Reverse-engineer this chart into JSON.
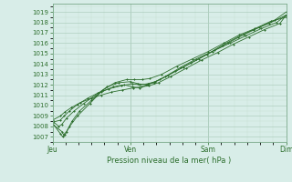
{
  "title": "",
  "xlabel": "Pression niveau de la mer( hPa )",
  "bg_color": "#d8ede8",
  "grid_color_major": "#b0cfc0",
  "grid_color_minor": "#c8e0d4",
  "line_color": "#2d6e2d",
  "ylim": [
    1006.5,
    1019.8
  ],
  "yticks": [
    1007,
    1008,
    1009,
    1010,
    1011,
    1012,
    1013,
    1014,
    1015,
    1016,
    1017,
    1018,
    1019
  ],
  "xtick_labels": [
    "Jeu",
    "Ven",
    "Sam",
    "Dim"
  ],
  "xtick_positions": [
    0,
    1,
    2,
    3
  ],
  "x_total": 3.0,
  "series": [
    {
      "x": [
        0.0,
        0.12,
        0.14,
        0.18,
        0.25,
        0.35,
        0.5,
        0.65,
        0.8,
        0.95,
        1.05,
        1.15,
        1.25,
        1.4,
        1.6,
        1.8,
        2.0,
        2.2,
        2.4,
        2.6,
        2.8,
        3.0
      ],
      "y": [
        1008.2,
        1007.5,
        1007.2,
        1007.5,
        1008.5,
        1009.5,
        1010.5,
        1011.5,
        1012.2,
        1012.5,
        1012.5,
        1012.5,
        1012.6,
        1013.0,
        1013.8,
        1014.5,
        1015.2,
        1016.0,
        1016.8,
        1017.4,
        1018.1,
        1018.5
      ]
    },
    {
      "x": [
        0.0,
        0.1,
        0.13,
        0.16,
        0.22,
        0.32,
        0.48,
        0.62,
        0.78,
        0.92,
        1.02,
        1.12,
        1.22,
        1.38,
        1.58,
        1.78,
        1.98,
        2.18,
        2.38,
        2.58,
        2.78,
        3.0
      ],
      "y": [
        1008.3,
        1007.3,
        1007.0,
        1007.2,
        1008.0,
        1009.0,
        1010.2,
        1011.3,
        1011.8,
        1012.0,
        1011.8,
        1011.7,
        1012.0,
        1012.5,
        1013.3,
        1014.1,
        1014.9,
        1015.8,
        1016.6,
        1017.3,
        1017.9,
        1018.7
      ]
    },
    {
      "x": [
        0.0,
        0.08,
        0.12,
        0.18,
        0.28,
        0.4,
        0.55,
        0.7,
        0.85,
        1.0,
        1.1,
        1.2,
        1.3,
        1.45,
        1.65,
        1.85,
        2.05,
        2.25,
        2.45,
        2.65,
        2.85,
        3.0
      ],
      "y": [
        1008.5,
        1008.0,
        1008.2,
        1008.8,
        1009.5,
        1010.2,
        1011.0,
        1011.8,
        1012.2,
        1012.3,
        1012.1,
        1012.0,
        1012.2,
        1012.8,
        1013.7,
        1014.5,
        1015.2,
        1016.0,
        1016.8,
        1017.5,
        1018.2,
        1019.0
      ]
    },
    {
      "x": [
        0.0,
        0.1,
        0.15,
        0.22,
        0.32,
        0.45,
        0.58,
        0.72,
        0.88,
        1.02,
        1.12,
        1.22,
        1.32,
        1.48,
        1.68,
        1.88,
        2.08,
        2.28,
        2.48,
        2.68,
        2.88,
        3.0
      ],
      "y": [
        1008.4,
        1008.6,
        1009.0,
        1009.5,
        1010.1,
        1010.7,
        1011.2,
        1011.6,
        1011.9,
        1012.1,
        1012.0,
        1012.1,
        1012.3,
        1012.9,
        1013.7,
        1014.5,
        1015.3,
        1016.0,
        1016.7,
        1017.4,
        1018.0,
        1018.7
      ]
    },
    {
      "x": [
        0.0,
        0.1,
        0.16,
        0.24,
        0.36,
        0.5,
        0.62,
        0.76,
        0.9,
        1.04,
        1.14,
        1.24,
        1.36,
        1.52,
        1.72,
        1.92,
        2.12,
        2.32,
        2.52,
        2.72,
        2.92,
        3.0
      ],
      "y": [
        1008.6,
        1009.0,
        1009.4,
        1009.8,
        1010.3,
        1010.7,
        1011.0,
        1011.3,
        1011.5,
        1011.7,
        1011.8,
        1011.9,
        1012.2,
        1012.8,
        1013.6,
        1014.4,
        1015.1,
        1015.9,
        1016.6,
        1017.3,
        1017.9,
        1018.7
      ]
    }
  ]
}
